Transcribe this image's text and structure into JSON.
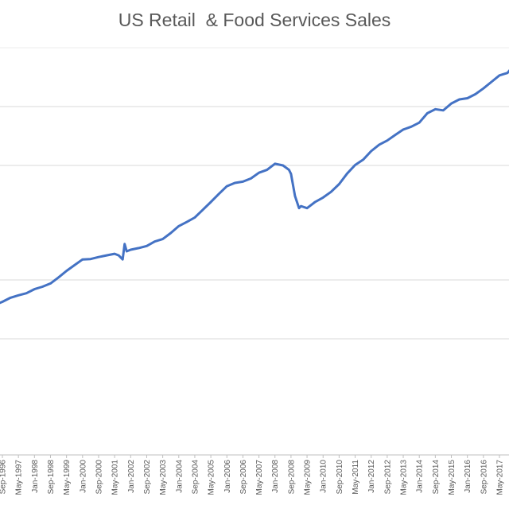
{
  "chart_data": {
    "type": "line",
    "title": "US Retail  & Food Services Sales",
    "xlabel": "",
    "ylabel": "",
    "grid": true,
    "tick_labels": [
      "Sep-1996",
      "May-1997",
      "Jan-1998",
      "Sep-1998",
      "May-1999",
      "Jan-2000",
      "Sep-2000",
      "May-2001",
      "Jan-2002",
      "Sep-2002",
      "May-2003",
      "Jan-2004",
      "Sep-2004",
      "May-2005",
      "Jan-2006",
      "Sep-2006",
      "May-2007",
      "Jan-2008",
      "Sep-2008",
      "May-2009",
      "Jan-2010",
      "Sep-2010",
      "May-2011",
      "Jan-2012",
      "Sep-2012",
      "May-2013",
      "Jan-2014",
      "Sep-2014",
      "May-2015",
      "Jan-2016",
      "Sep-2016",
      "May-2017"
    ],
    "series": [
      {
        "color": "#4472C4",
        "points": [
          [
            "Jan-1996",
            0.36
          ],
          [
            "Sep-1996",
            0.376
          ],
          [
            "Jan-1997",
            0.386
          ],
          [
            "May-1997",
            0.392
          ],
          [
            "Sep-1997",
            0.397
          ],
          [
            "Jan-1998",
            0.407
          ],
          [
            "May-1998",
            0.413
          ],
          [
            "Sep-1998",
            0.421
          ],
          [
            "Jan-1999",
            0.436
          ],
          [
            "May-1999",
            0.452
          ],
          [
            "Sep-1999",
            0.466
          ],
          [
            "Jan-2000",
            0.48
          ],
          [
            "May-2000",
            0.481
          ],
          [
            "Sep-2000",
            0.486
          ],
          [
            "Jan-2001",
            0.49
          ],
          [
            "May-2001",
            0.494
          ],
          [
            "Jul-2001",
            0.49
          ],
          [
            "Sep-2001",
            0.48
          ],
          [
            "Oct-2001",
            0.518
          ],
          [
            "Nov-2001",
            0.5
          ],
          [
            "Jan-2002",
            0.504
          ],
          [
            "May-2002",
            0.508
          ],
          [
            "Sep-2002",
            0.513
          ],
          [
            "Jan-2003",
            0.524
          ],
          [
            "May-2003",
            0.53
          ],
          [
            "Sep-2003",
            0.545
          ],
          [
            "Jan-2004",
            0.562
          ],
          [
            "May-2004",
            0.572
          ],
          [
            "Sep-2004",
            0.583
          ],
          [
            "Jan-2005",
            0.602
          ],
          [
            "May-2005",
            0.621
          ],
          [
            "Sep-2005",
            0.641
          ],
          [
            "Jan-2006",
            0.66
          ],
          [
            "May-2006",
            0.668
          ],
          [
            "Sep-2006",
            0.671
          ],
          [
            "Jan-2007",
            0.679
          ],
          [
            "May-2007",
            0.693
          ],
          [
            "Sep-2007",
            0.7
          ],
          [
            "Jan-2008",
            0.715
          ],
          [
            "May-2008",
            0.711
          ],
          [
            "Aug-2008",
            0.7
          ],
          [
            "Sep-2008",
            0.69
          ],
          [
            "Nov-2008",
            0.636
          ],
          [
            "Jan-2009",
            0.606
          ],
          [
            "Feb-2009",
            0.611
          ],
          [
            "May-2009",
            0.606
          ],
          [
            "Sep-2009",
            0.621
          ],
          [
            "Jan-2010",
            0.632
          ],
          [
            "May-2010",
            0.646
          ],
          [
            "Sep-2010",
            0.665
          ],
          [
            "Jan-2011",
            0.691
          ],
          [
            "May-2011",
            0.712
          ],
          [
            "Sep-2011",
            0.725
          ],
          [
            "Jan-2012",
            0.746
          ],
          [
            "May-2012",
            0.762
          ],
          [
            "Sep-2012",
            0.772
          ],
          [
            "Jan-2013",
            0.786
          ],
          [
            "May-2013",
            0.799
          ],
          [
            "Sep-2013",
            0.806
          ],
          [
            "Jan-2014",
            0.816
          ],
          [
            "May-2014",
            0.839
          ],
          [
            "Sep-2014",
            0.849
          ],
          [
            "Jan-2015",
            0.846
          ],
          [
            "May-2015",
            0.863
          ],
          [
            "Sep-2015",
            0.873
          ],
          [
            "Jan-2016",
            0.876
          ],
          [
            "May-2016",
            0.886
          ],
          [
            "Sep-2016",
            0.9
          ],
          [
            "Jan-2017",
            0.916
          ],
          [
            "May-2017",
            0.932
          ],
          [
            "Sep-2017",
            0.938
          ],
          [
            "Dec-2017",
            0.956
          ]
        ]
      }
    ]
  }
}
